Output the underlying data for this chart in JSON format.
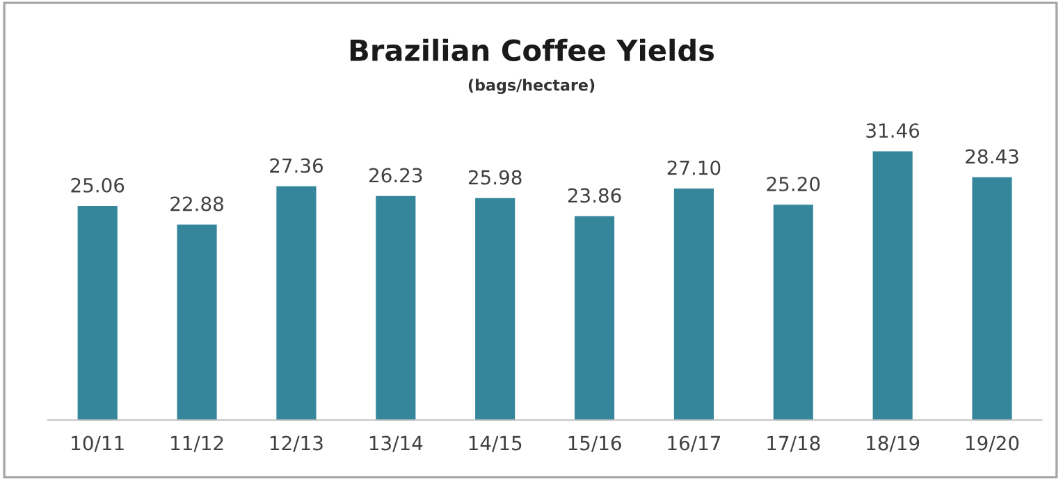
{
  "chart_data": {
    "type": "bar",
    "title": "Brazilian Coffee Yields",
    "subtitle": "(bags/hectare)",
    "categories": [
      "10/11",
      "11/12",
      "12/13",
      "13/14",
      "14/15",
      "15/16",
      "16/17",
      "17/18",
      "18/19",
      "19/20"
    ],
    "values": [
      25.06,
      22.88,
      27.36,
      26.23,
      25.98,
      23.86,
      27.1,
      25.2,
      31.46,
      28.43
    ],
    "value_labels": [
      "25.06",
      "22.88",
      "27.36",
      "26.23",
      "25.98",
      "23.86",
      "27.10",
      "25.20",
      "31.46",
      "28.43"
    ],
    "color": "#35869b",
    "tick_labels": "x",
    "grid": false,
    "legend": false
  }
}
